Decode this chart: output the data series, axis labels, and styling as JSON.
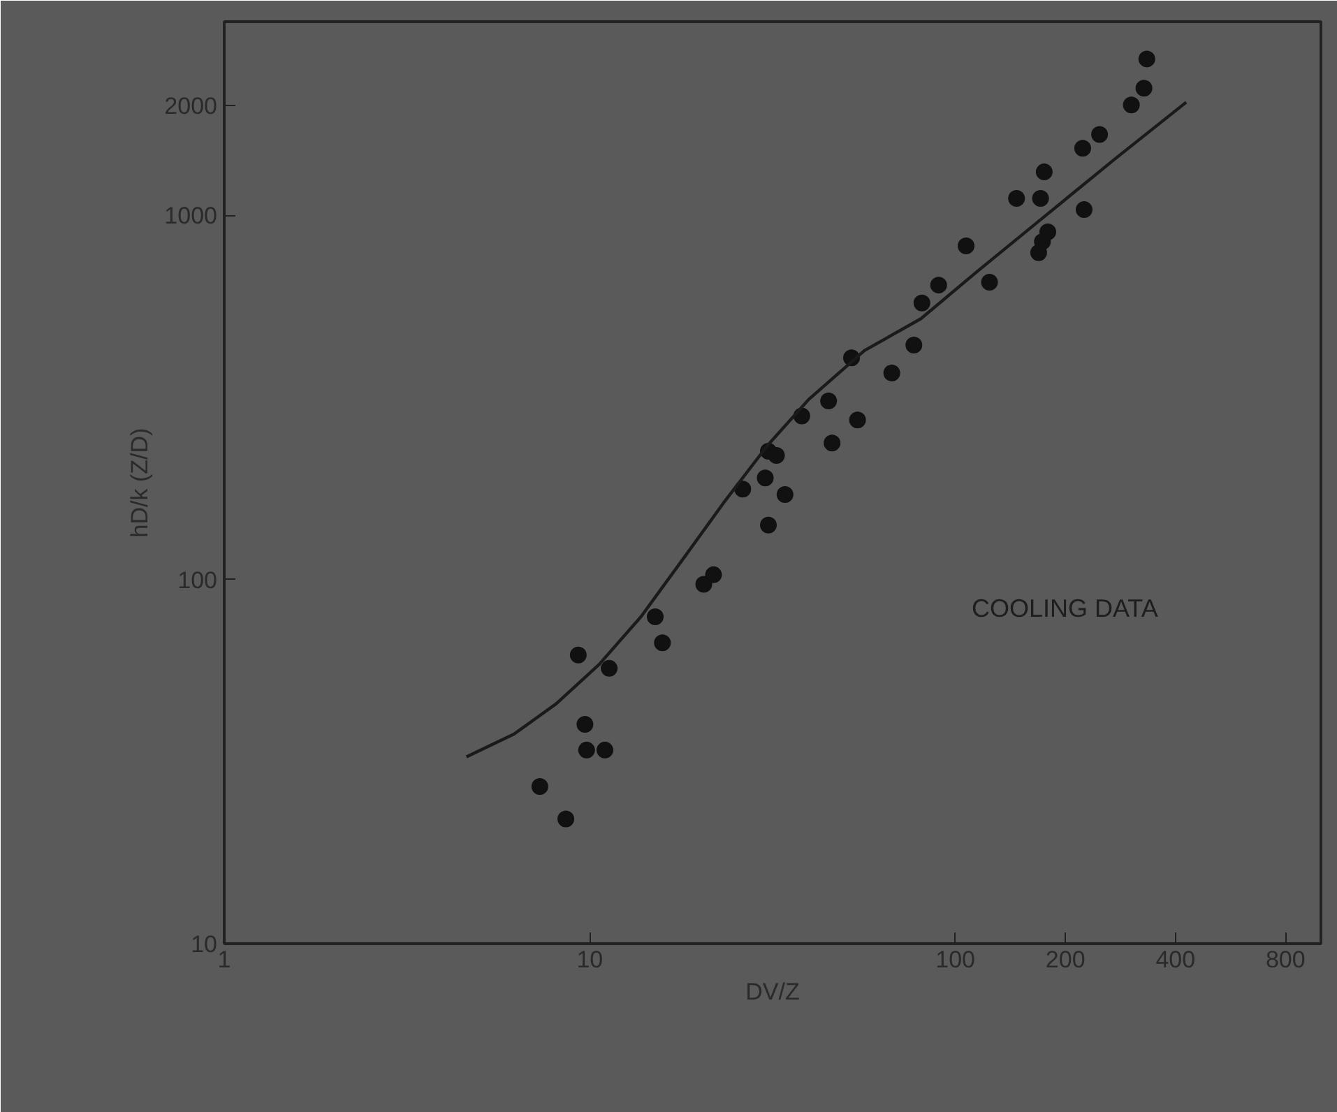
{
  "chart_data": {
    "type": "scatter",
    "log": "xy",
    "xlabel": "DV/Z",
    "ylabel": "hD/k (Z/D)",
    "xlim": [
      1,
      1000
    ],
    "ylim": [
      10,
      3400
    ],
    "xticks": [
      1,
      10,
      100,
      200,
      400,
      800
    ],
    "yticks": [
      10,
      100,
      1000,
      2000
    ],
    "grid": false,
    "marker": "circle",
    "annotations": [
      "COOLING DATA"
    ],
    "series": [
      {
        "color": "#111111",
        "x": [
          7.3,
          8.6,
          9.3,
          9.7,
          9.8,
          11,
          11.3,
          15.1,
          15.8,
          20.5,
          21.8,
          26.2,
          30.2,
          30.8,
          32.4,
          30.8,
          34.2,
          38,
          45,
          46,
          52,
          54,
          67,
          77,
          81,
          90,
          107,
          124,
          147,
          171,
          175,
          169,
          173,
          179,
          223,
          225,
          248,
          303,
          328,
          334
        ],
        "values": [
          27,
          22,
          62,
          40,
          34,
          34,
          57,
          79,
          67,
          97,
          103,
          177,
          190,
          225,
          219,
          141,
          171,
          281,
          309,
          237,
          406,
          274,
          369,
          440,
          574,
          643,
          824,
          655,
          1112,
          1112,
          1315,
          789,
          846,
          900,
          1527,
          1036,
          1667,
          2009,
          2233,
          2686
        ]
      },
      {
        "type": "line",
        "color": "#1a1a1a",
        "line_style": "solid",
        "marker": "none",
        "x": [
          4.6,
          6.2,
          8.1,
          10.6,
          13.8,
          17.9,
          23.4,
          30.6,
          39.7,
          56.4,
          80.5,
          114,
          177,
          275,
          428
        ],
        "values": [
          32.6,
          37.6,
          45.6,
          58.4,
          79,
          113,
          164,
          233,
          312,
          425,
          520,
          697,
          1000,
          1435,
          2043
        ]
      }
    ]
  }
}
